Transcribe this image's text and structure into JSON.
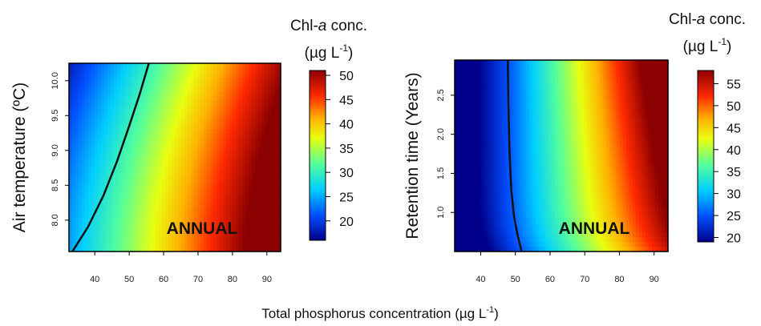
{
  "figure": {
    "shared_xlabel_text": "Total phosphorus concentration (µg L",
    "shared_xlabel_sup": "-1",
    "shared_xlabel_close": ")"
  },
  "chart_data": [
    {
      "type": "heatmap",
      "title": "",
      "annotation": "ANNUAL",
      "xlabel": "",
      "ylabel": "Air temperature (ºC)",
      "xlim": [
        32.5,
        94
      ],
      "ylim": [
        7.55,
        10.25
      ],
      "x_ticks": [
        "40",
        "50",
        "60",
        "70",
        "80",
        "90"
      ],
      "y_ticks": [
        "8.0",
        "8.5",
        "9.0",
        "9.5",
        "10.0"
      ],
      "x_tick_values": [
        40,
        50,
        60,
        70,
        80,
        90
      ],
      "y_tick_values": [
        8.0,
        8.5,
        9.0,
        9.5,
        10.0
      ],
      "colorbar": {
        "title_prefix": "Chl-",
        "title_italic": "a",
        "title_suffix": " conc.",
        "unit_prefix": "(µg L",
        "unit_sup": "-1",
        "unit_suffix": ")",
        "range": [
          16,
          51
        ],
        "ticks": [
          "20",
          "25",
          "30",
          "35",
          "40",
          "45",
          "50"
        ],
        "tick_values": [
          20,
          25,
          30,
          35,
          40,
          45,
          50
        ]
      },
      "contour": {
        "level": 25,
        "points": [
          [
            33.5,
            7.55
          ],
          [
            38,
            7.9
          ],
          [
            42.5,
            8.35
          ],
          [
            46.5,
            8.85
          ],
          [
            50,
            9.35
          ],
          [
            53,
            9.8
          ],
          [
            55.7,
            10.25
          ]
        ]
      },
      "surface_description": "Chl-a rises with total phosphorus and air temperature",
      "grid": false
    },
    {
      "type": "heatmap",
      "title": "",
      "annotation": "ANNUAL",
      "xlabel": "",
      "ylabel": "Retention time (Years)",
      "xlim": [
        32.5,
        94
      ],
      "ylim": [
        0.5,
        2.95
      ],
      "x_ticks": [
        "40",
        "50",
        "60",
        "70",
        "80",
        "90"
      ],
      "y_ticks": [
        "1.0",
        "1.5",
        "2.0",
        "2.5"
      ],
      "x_tick_values": [
        40,
        50,
        60,
        70,
        80,
        90
      ],
      "y_tick_values": [
        1.0,
        1.5,
        2.0,
        2.5
      ],
      "colorbar": {
        "title_prefix": "Chl-",
        "title_italic": "a",
        "title_suffix": " conc.",
        "unit_prefix": "(µg L",
        "unit_sup": "-1",
        "unit_suffix": ")",
        "range": [
          19,
          58
        ],
        "ticks": [
          "20",
          "25",
          "30",
          "35",
          "40",
          "45",
          "50",
          "55"
        ],
        "tick_values": [
          20,
          25,
          30,
          35,
          40,
          45,
          50,
          55
        ]
      },
      "contour": {
        "level": 25,
        "points": [
          [
            47.8,
            2.95
          ],
          [
            48.0,
            2.4
          ],
          [
            48.3,
            1.8
          ],
          [
            48.8,
            1.3
          ],
          [
            49.6,
            0.95
          ],
          [
            50.7,
            0.7
          ],
          [
            51.8,
            0.5
          ]
        ]
      },
      "surface_description": "Chl-a rises with total phosphorus and slightly with retention time",
      "grid": false
    }
  ]
}
